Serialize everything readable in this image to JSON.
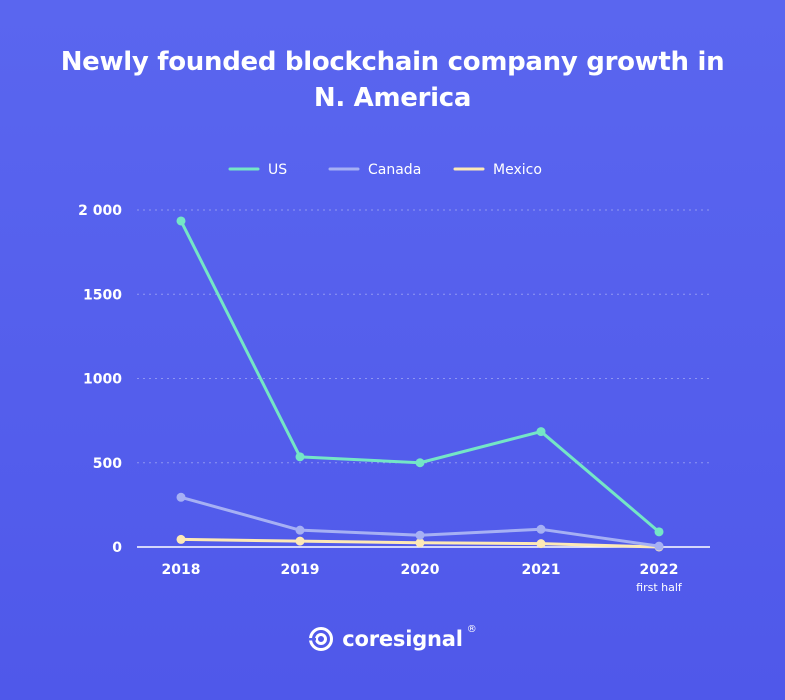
{
  "chart_data": {
    "type": "line",
    "title": "Newly founded blockchain company growth in N. America",
    "title_lines": [
      "Newly founded blockchain company growth in",
      "N. America"
    ],
    "categories": [
      "2018",
      "2019",
      "2020",
      "2021",
      "2022"
    ],
    "category_sublabels": [
      "",
      "",
      "",
      "",
      "first half"
    ],
    "series": [
      {
        "name": "US",
        "values": [
          1935,
          535,
          500,
          685,
          90
        ],
        "color": "#74e6c6"
      },
      {
        "name": "Canada",
        "values": [
          295,
          100,
          70,
          105,
          5
        ],
        "color": "#a6b0f4"
      },
      {
        "name": "Mexico",
        "values": [
          45,
          35,
          25,
          20,
          0
        ],
        "color": "#fde9b5"
      }
    ],
    "yticks": [
      "0",
      "500",
      "1000",
      "1500",
      "2 000"
    ],
    "ytick_values": [
      0,
      500,
      1000,
      1500,
      2000
    ],
    "ylim": [
      0,
      2000
    ],
    "xlabel": "",
    "ylabel": "",
    "grid": "horizontal-dotted",
    "legend_position": "top-center"
  },
  "brand": {
    "name": "coresignal",
    "registered": "®",
    "logo_icon": "coresignal-logo-icon"
  }
}
